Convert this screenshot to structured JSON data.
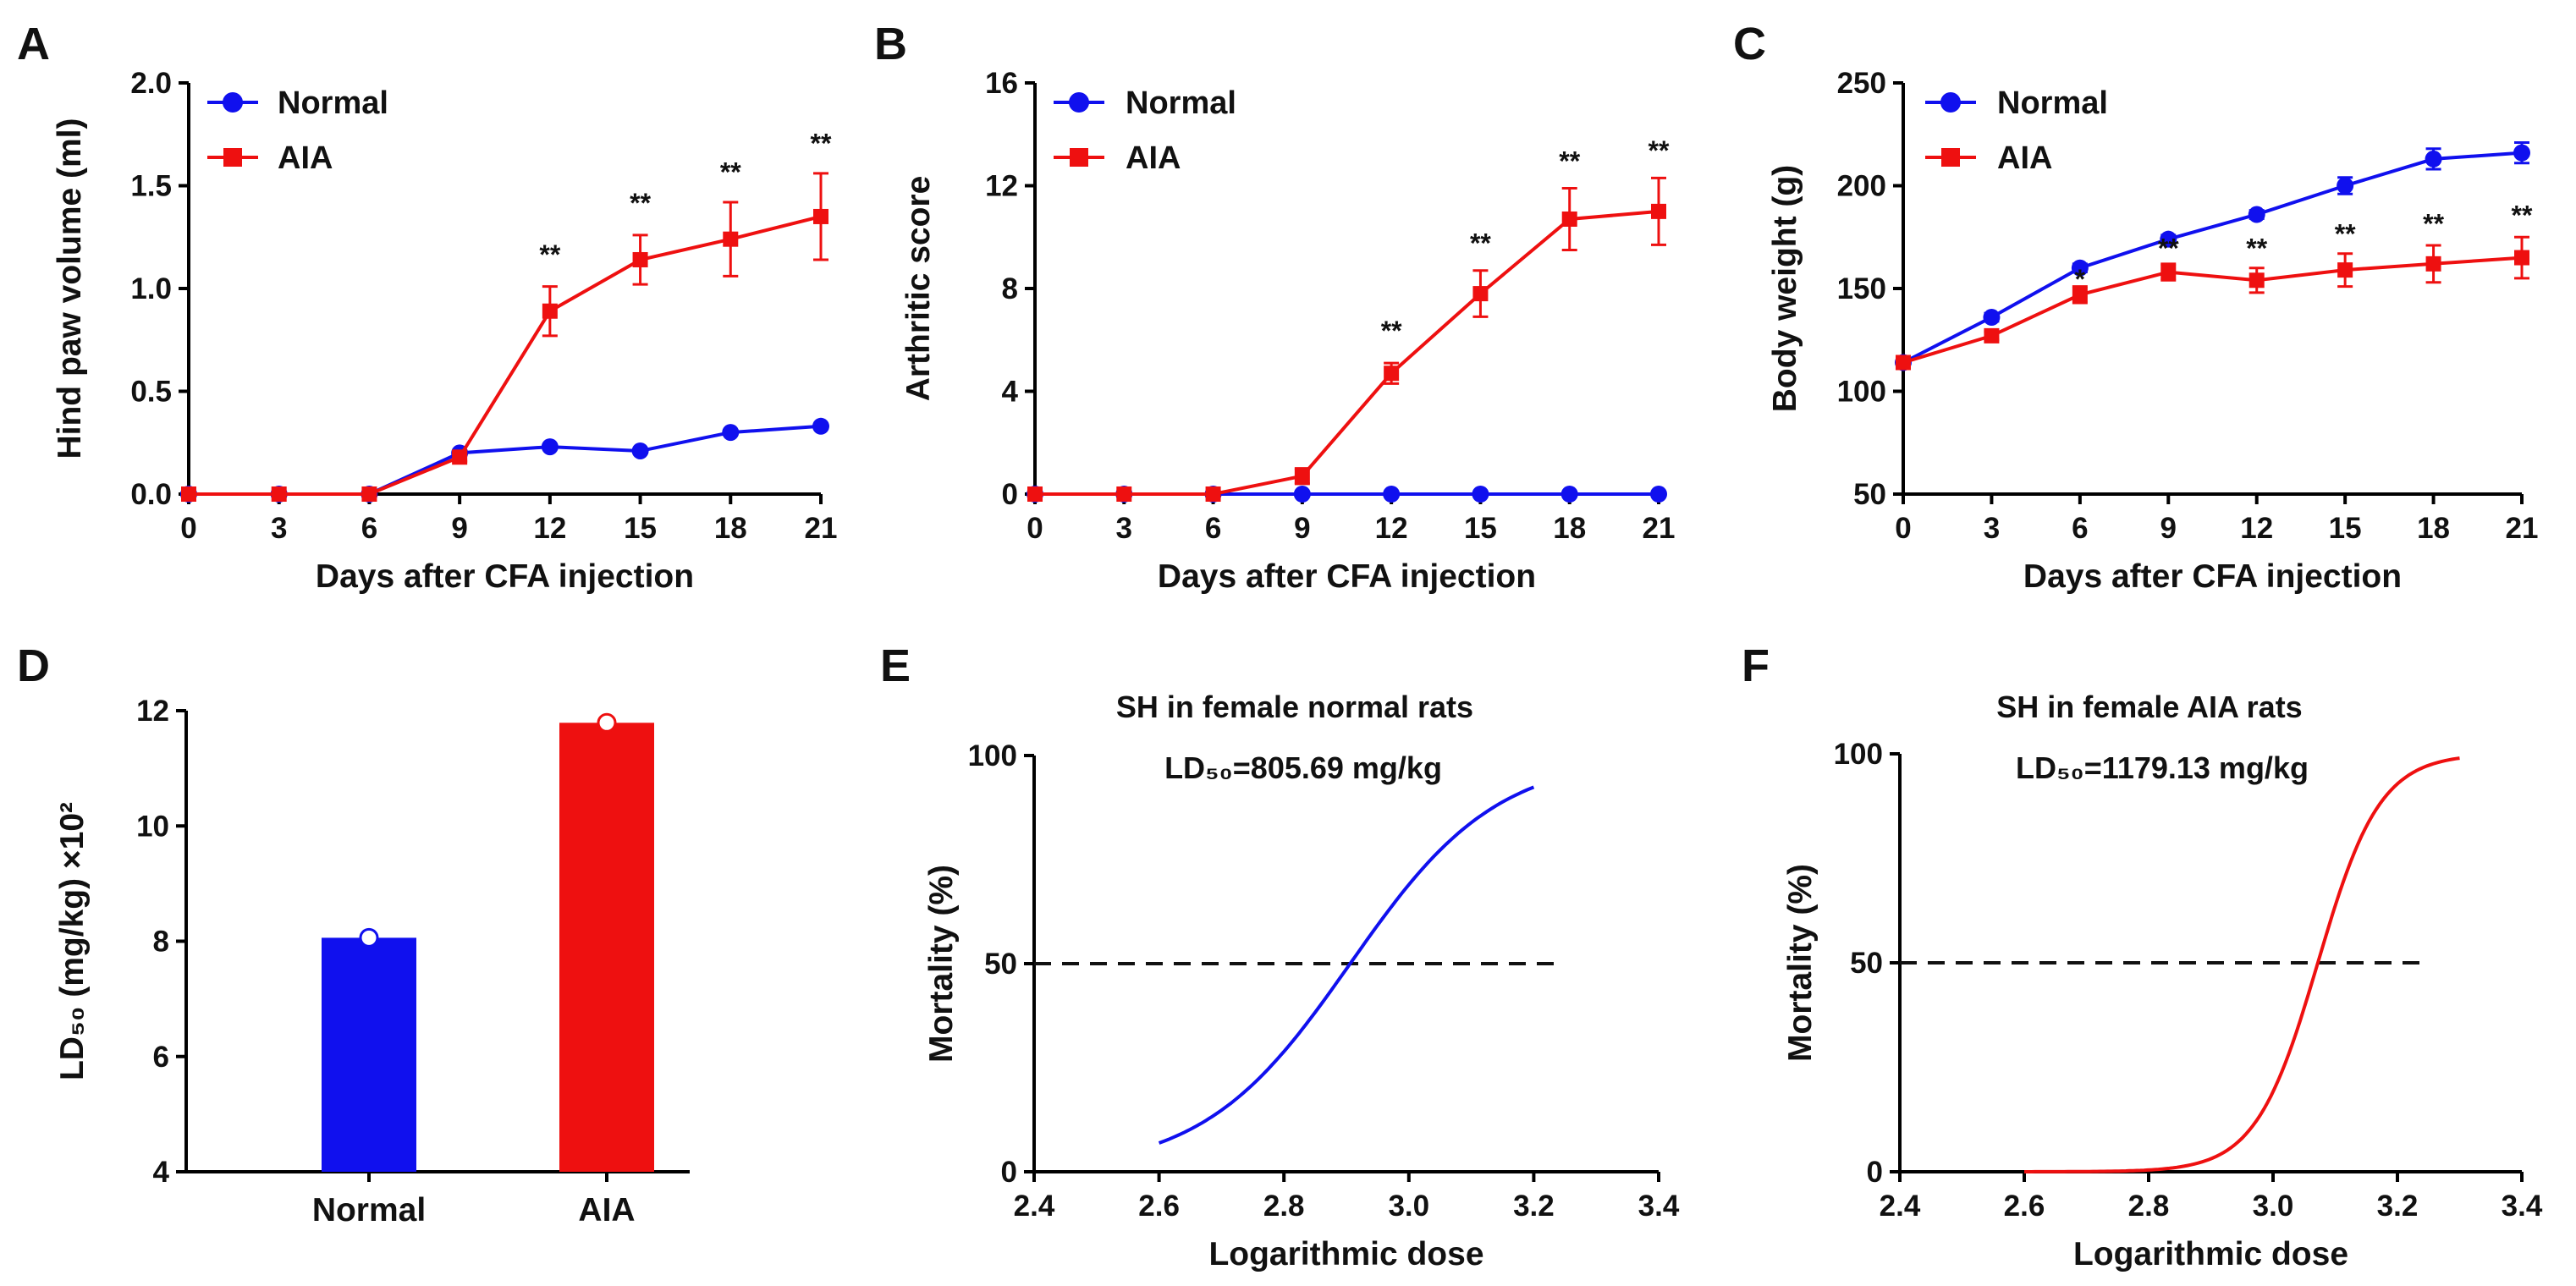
{
  "colors": {
    "normal": "#1010ee",
    "aia": "#ee1010",
    "axis": "#000000",
    "dash": "#111111"
  },
  "chart_data": [
    {
      "panel": "A",
      "type": "line",
      "xlabel": "Days after CFA injection",
      "ylabel": "Hind paw volume (ml)",
      "x": [
        0,
        3,
        6,
        9,
        12,
        15,
        18,
        21
      ],
      "xticks": [
        0,
        3,
        6,
        9,
        12,
        15,
        18,
        21
      ],
      "xlim": [
        0,
        21
      ],
      "yticks": [
        0,
        0.5,
        1,
        1.5,
        2
      ],
      "ytick_labels": [
        "0.0",
        "0.5",
        "1.0",
        "1.5",
        "2.0"
      ],
      "ylim": [
        0,
        2
      ],
      "series": [
        {
          "name": "Normal",
          "color": "#1010ee",
          "marker": "circle",
          "values": [
            0,
            0,
            0,
            0.2,
            0.23,
            0.21,
            0.3,
            0.33
          ],
          "errors": [
            0,
            0,
            0,
            0.01,
            0.01,
            0.01,
            0.01,
            0.01
          ]
        },
        {
          "name": "AIA",
          "color": "#ee1010",
          "marker": "square",
          "values": [
            0,
            0,
            0,
            0.18,
            0.89,
            1.14,
            1.24,
            1.35
          ],
          "errors": [
            0,
            0,
            0,
            0.02,
            0.12,
            0.12,
            0.18,
            0.21
          ]
        }
      ],
      "annotations": [
        {
          "x": 12,
          "y": 1.12,
          "text": "**"
        },
        {
          "x": 15,
          "y": 1.37,
          "text": "**"
        },
        {
          "x": 18,
          "y": 1.52,
          "text": "**"
        },
        {
          "x": 21,
          "y": 1.66,
          "text": "**"
        }
      ]
    },
    {
      "panel": "B",
      "type": "line",
      "xlabel": "Days after CFA injection",
      "ylabel": "Arthritic score",
      "x": [
        0,
        3,
        6,
        9,
        12,
        15,
        18,
        21
      ],
      "xticks": [
        0,
        3,
        6,
        9,
        12,
        15,
        18,
        21
      ],
      "xlim": [
        0,
        21
      ],
      "yticks": [
        0,
        4,
        8,
        12,
        16
      ],
      "ytick_labels": [
        "0",
        "4",
        "8",
        "12",
        "16"
      ],
      "ylim": [
        0,
        16
      ],
      "series": [
        {
          "name": "Normal",
          "color": "#1010ee",
          "marker": "circle",
          "values": [
            0,
            0,
            0,
            0,
            0,
            0,
            0,
            0
          ],
          "errors": [
            0,
            0,
            0,
            0,
            0,
            0,
            0,
            0
          ]
        },
        {
          "name": "AIA",
          "color": "#ee1010",
          "marker": "square",
          "values": [
            0,
            0,
            0,
            0.7,
            4.7,
            7.8,
            10.7,
            11.0
          ],
          "errors": [
            0,
            0,
            0,
            0.3,
            0.4,
            0.9,
            1.2,
            1.3
          ]
        }
      ],
      "annotations": [
        {
          "x": 12,
          "y": 6.0,
          "text": "**"
        },
        {
          "x": 15,
          "y": 9.4,
          "text": "**"
        },
        {
          "x": 18,
          "y": 12.6,
          "text": "**"
        },
        {
          "x": 21,
          "y": 13.0,
          "text": "**"
        }
      ]
    },
    {
      "panel": "C",
      "type": "line",
      "xlabel": "Days after CFA injection",
      "ylabel": "Body weight (g)",
      "x": [
        0,
        3,
        6,
        9,
        12,
        15,
        18,
        21
      ],
      "xticks": [
        0,
        3,
        6,
        9,
        12,
        15,
        18,
        21
      ],
      "xlim": [
        0,
        21
      ],
      "yticks": [
        50,
        100,
        150,
        200,
        250
      ],
      "ytick_labels": [
        "50",
        "100",
        "150",
        "200",
        "250"
      ],
      "ylim": [
        50,
        250
      ],
      "series": [
        {
          "name": "Normal",
          "color": "#1010ee",
          "marker": "circle",
          "values": [
            114,
            136,
            160,
            174,
            186,
            200,
            213,
            216
          ],
          "errors": [
            1,
            2,
            2,
            2,
            2,
            4,
            5,
            5
          ]
        },
        {
          "name": "AIA",
          "color": "#ee1010",
          "marker": "square",
          "values": [
            114,
            127,
            147,
            158,
            154,
            159,
            162,
            165
          ],
          "errors": [
            1,
            2,
            4,
            4,
            6,
            8,
            9,
            10
          ]
        }
      ],
      "annotations": [
        {
          "x": 6,
          "y": 150,
          "text": "*"
        },
        {
          "x": 9,
          "y": 165,
          "text": "**"
        },
        {
          "x": 12,
          "y": 165,
          "text": "**"
        },
        {
          "x": 15,
          "y": 172,
          "text": "**"
        },
        {
          "x": 18,
          "y": 177,
          "text": "**"
        },
        {
          "x": 21,
          "y": 181,
          "text": "**"
        }
      ]
    },
    {
      "panel": "D",
      "type": "bar",
      "xlabel": "",
      "ylabel": "LD₅₀ (mg/kg) ×10²",
      "categories": [
        "Normal",
        "AIA"
      ],
      "values": [
        8.06,
        11.79
      ],
      "colors": [
        "#1010ee",
        "#ee1010"
      ],
      "yticks": [
        4,
        6,
        8,
        10,
        12
      ],
      "ytick_labels": [
        "4",
        "6",
        "8",
        "10",
        "12"
      ],
      "ylim": [
        4,
        12
      ]
    },
    {
      "panel": "E",
      "type": "line",
      "title": "SH in female normal rats",
      "annotation": "LD₅₀=805.69 mg/kg",
      "xlabel": "Logarithmic dose",
      "ylabel": "Mortality (%)",
      "xticks": [
        2.4,
        2.6,
        2.8,
        3.0,
        3.2,
        3.4
      ],
      "xtick_labels": [
        "2.4",
        "2.6",
        "2.8",
        "3.0",
        "3.2",
        "3.4"
      ],
      "xlim": [
        2.4,
        3.4
      ],
      "yticks": [
        0,
        50,
        100
      ],
      "ytick_labels": [
        "0",
        "50",
        "100"
      ],
      "ylim": [
        0,
        100
      ],
      "reference_line_y": 50,
      "reference_line_x": [
        2.4,
        3.24
      ],
      "curve": {
        "color": "#1010ee",
        "x50": 2.906,
        "slope": 8.5,
        "x_start": 2.6,
        "x_end": 3.2
      }
    },
    {
      "panel": "F",
      "type": "line",
      "title": "SH in female AIA rats",
      "annotation": "LD₅₀=1179.13 mg/kg",
      "xlabel": "Logarithmic dose",
      "ylabel": "Mortality (%)",
      "xticks": [
        2.4,
        2.6,
        2.8,
        3.0,
        3.2,
        3.4
      ],
      "xtick_labels": [
        "2.4",
        "2.6",
        "2.8",
        "3.0",
        "3.2",
        "3.4"
      ],
      "xlim": [
        2.4,
        3.4
      ],
      "yticks": [
        0,
        50,
        100
      ],
      "ytick_labels": [
        "0",
        "50",
        "100"
      ],
      "ylim": [
        0,
        100
      ],
      "reference_line_y": 50,
      "reference_line_x": [
        2.4,
        3.24
      ],
      "curve": {
        "color": "#ee1010",
        "x50": 3.072,
        "slope": 20.0,
        "x_start": 2.6,
        "x_end": 3.3
      }
    }
  ]
}
